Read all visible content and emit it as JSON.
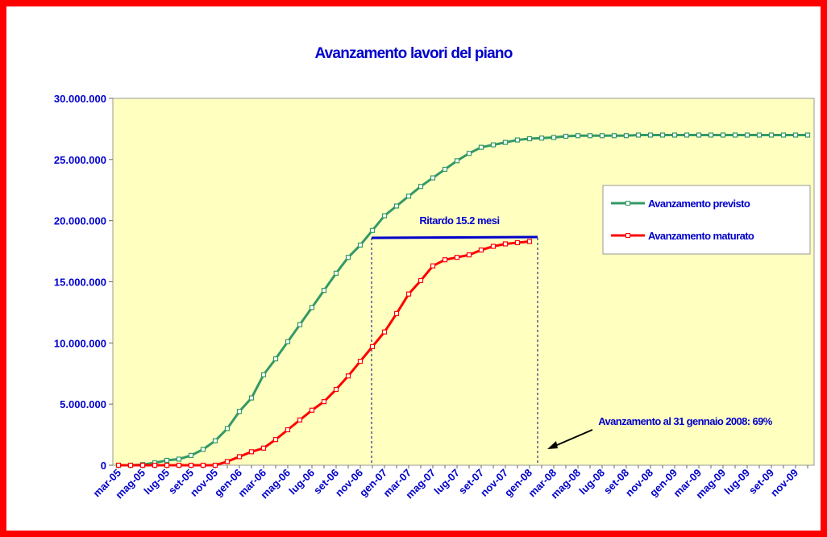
{
  "chart_data": {
    "type": "line",
    "title": "Avanzamento lavori del piano",
    "categories": [
      "mar-05",
      null,
      "mag-05",
      null,
      "lug-05",
      null,
      "set-05",
      null,
      "nov-05",
      null,
      "gen-06",
      null,
      "mar-06",
      null,
      "mag-06",
      null,
      "lug-06",
      null,
      "set-06",
      null,
      "nov-06",
      null,
      "gen-07",
      null,
      "mar-07",
      null,
      "mag-07",
      null,
      "lug-07",
      null,
      "set-07",
      null,
      "nov-07",
      null,
      "gen-08",
      null,
      "mar-08",
      null,
      "mag-08",
      null,
      "lug-08",
      null,
      "set-08",
      null,
      "nov-08",
      null,
      "gen-09",
      null,
      "mar-09",
      null,
      "mag-09",
      null,
      "lug-09",
      null,
      "set-09",
      null,
      "nov-09",
      null
    ],
    "series": [
      {
        "name": "Avanzamento previsto",
        "color": "#339966",
        "values": [
          0,
          0,
          50000,
          200000,
          400000,
          500000,
          800000,
          1300000,
          2000000,
          3000000,
          4400000,
          5500000,
          7400000,
          8700000,
          10100000,
          11500000,
          12900000,
          14300000,
          15700000,
          17000000,
          18000000,
          19200000,
          20400000,
          21200000,
          22000000,
          22800000,
          23500000,
          24200000,
          24900000,
          25500000,
          26000000,
          26200000,
          26400000,
          26600000,
          26700000,
          26750000,
          26800000,
          26900000,
          26950000,
          26950000,
          26950000,
          26950000,
          26950000,
          27000000,
          27000000,
          27000000,
          27000000,
          27000000,
          27000000,
          27000000,
          27000000,
          27000000,
          27000000,
          27000000,
          27000000,
          27000000,
          27000000,
          27000000
        ]
      },
      {
        "name": "Avanzamento maturato",
        "color": "#ff0000",
        "values": [
          0,
          0,
          0,
          0,
          0,
          0,
          0,
          0,
          0,
          300000,
          700000,
          1100000,
          1400000,
          2100000,
          2900000,
          3700000,
          4500000,
          5200000,
          6200000,
          7300000,
          8500000,
          9700000,
          10900000,
          12400000,
          14000000,
          15100000,
          16300000,
          16800000,
          17000000,
          17200000,
          17600000,
          17900000,
          18100000,
          18200000,
          18300000,
          null,
          null,
          null,
          null,
          null,
          null,
          null,
          null,
          null,
          null,
          null,
          null,
          null,
          null,
          null,
          null,
          null,
          null,
          null,
          null,
          null,
          null,
          null
        ]
      }
    ],
    "ylim": [
      0,
      30000000
    ],
    "yticks": [
      {
        "value": 0,
        "label": "0"
      },
      {
        "value": 5000000,
        "label": "5.000.000"
      },
      {
        "value": 10000000,
        "label": "10.000.000"
      },
      {
        "value": 15000000,
        "label": "15.000.000"
      },
      {
        "value": 20000000,
        "label": "20.000.000"
      },
      {
        "value": 25000000,
        "label": "25.000.000"
      },
      {
        "value": 30000000,
        "label": "30.000.000"
      }
    ],
    "annotations": [
      "Ritardo 15.2 mesi",
      "Avanzamento al 31 gennaio 2008: 69%"
    ],
    "legend": "right"
  }
}
